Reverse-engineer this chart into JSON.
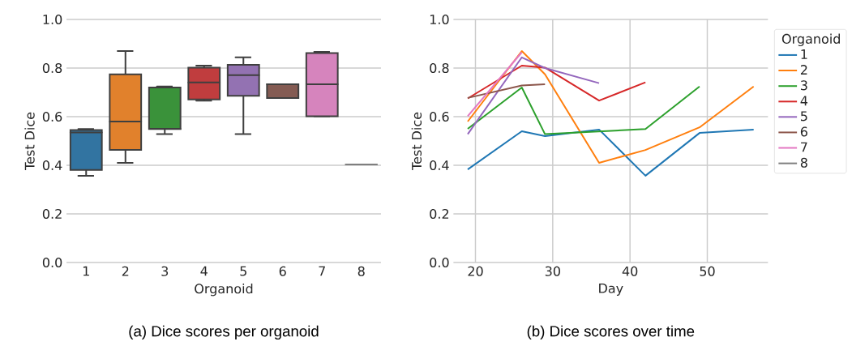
{
  "chart_data": [
    {
      "type": "box",
      "title": "(a) Dice scores per organoid",
      "xlabel": "Organoid",
      "ylabel": "Test Dice",
      "categories": [
        "1",
        "2",
        "3",
        "4",
        "5",
        "6",
        "7",
        "8"
      ],
      "boxes": [
        {
          "low": 0.357,
          "q1": 0.381,
          "median": 0.535,
          "q3": 0.545,
          "high": 0.549
        },
        {
          "low": 0.41,
          "q1": 0.463,
          "median": 0.58,
          "q3": 0.774,
          "high": 0.87
        },
        {
          "low": 0.528,
          "q1": 0.549,
          "median": 0.55,
          "q3": 0.72,
          "high": 0.724
        },
        {
          "low": 0.666,
          "q1": 0.671,
          "median": 0.741,
          "q3": 0.802,
          "high": 0.81
        },
        {
          "low": 0.528,
          "q1": 0.686,
          "median": 0.771,
          "q3": 0.813,
          "high": 0.844
        },
        {
          "low": 0.677,
          "q1": 0.677,
          "median": 0.733,
          "q3": 0.733,
          "high": 0.733
        },
        {
          "low": 0.602,
          "q1": 0.602,
          "median": 0.733,
          "q3": 0.862,
          "high": 0.867
        },
        {
          "low": 0.403,
          "q1": 0.403,
          "median": 0.403,
          "q3": 0.403,
          "high": 0.403
        }
      ],
      "colors": [
        "#3274a1",
        "#e1812c",
        "#3a923a",
        "#c03d3e",
        "#9372b2",
        "#845b53",
        "#d684bd",
        "#7f7f7f"
      ],
      "ylim": [
        0,
        1
      ],
      "yticks": [
        {
          "value": 0,
          "label": "0.0"
        },
        {
          "value": 0.2,
          "label": "0.2"
        },
        {
          "value": 0.4,
          "label": "0.4"
        },
        {
          "value": 0.6,
          "label": "0.6"
        },
        {
          "value": 0.8,
          "label": "0.8"
        },
        {
          "value": 1,
          "label": "1.0"
        }
      ],
      "grid": "y"
    },
    {
      "type": "line",
      "title": "(b) Dice scores over time",
      "xlabel": "Day",
      "ylabel": "Test Dice",
      "legend_title": "Organoid",
      "series": [
        {
          "name": "1",
          "color": "#1f77b4",
          "x": [
            19,
            26,
            29,
            36,
            42,
            49,
            56
          ],
          "values": [
            0.383,
            0.54,
            0.52,
            0.547,
            0.357,
            0.533,
            0.547
          ]
        },
        {
          "name": "2",
          "color": "#ff7f0e",
          "x": [
            19,
            26,
            29,
            36,
            42,
            49,
            56
          ],
          "values": [
            0.58,
            0.87,
            0.774,
            0.41,
            0.463,
            0.556,
            0.724
          ]
        },
        {
          "name": "3",
          "color": "#2ca02c",
          "x": [
            19,
            26,
            29,
            42,
            49
          ],
          "values": [
            0.55,
            0.72,
            0.528,
            0.549,
            0.724
          ]
        },
        {
          "name": "4",
          "color": "#d62728",
          "x": [
            19,
            26,
            29,
            36,
            42
          ],
          "values": [
            0.675,
            0.81,
            0.802,
            0.666,
            0.741
          ]
        },
        {
          "name": "5",
          "color": "#9467bd",
          "x": [
            19,
            26,
            29,
            36
          ],
          "values": [
            0.528,
            0.844,
            0.8,
            0.738
          ]
        },
        {
          "name": "6",
          "color": "#8c564b",
          "x": [
            19,
            26,
            29
          ],
          "values": [
            0.677,
            0.728,
            0.733
          ]
        },
        {
          "name": "7",
          "color": "#e377c2",
          "x": [
            19,
            26
          ],
          "values": [
            0.602,
            0.865
          ]
        },
        {
          "name": "8",
          "color": "#7f7f7f"
        }
      ],
      "xlim": [
        17.15,
        57.85
      ],
      "xticks": [
        20,
        30,
        40,
        50
      ],
      "ylim": [
        0,
        1
      ],
      "yticks": [
        {
          "value": 0,
          "label": "0.0"
        },
        {
          "value": 0.2,
          "label": "0.2"
        },
        {
          "value": 0.4,
          "label": "0.4"
        },
        {
          "value": 0.6,
          "label": "0.6"
        },
        {
          "value": 0.8,
          "label": "0.8"
        },
        {
          "value": 1,
          "label": "1.0"
        }
      ],
      "grid": true,
      "legend": "right"
    }
  ]
}
